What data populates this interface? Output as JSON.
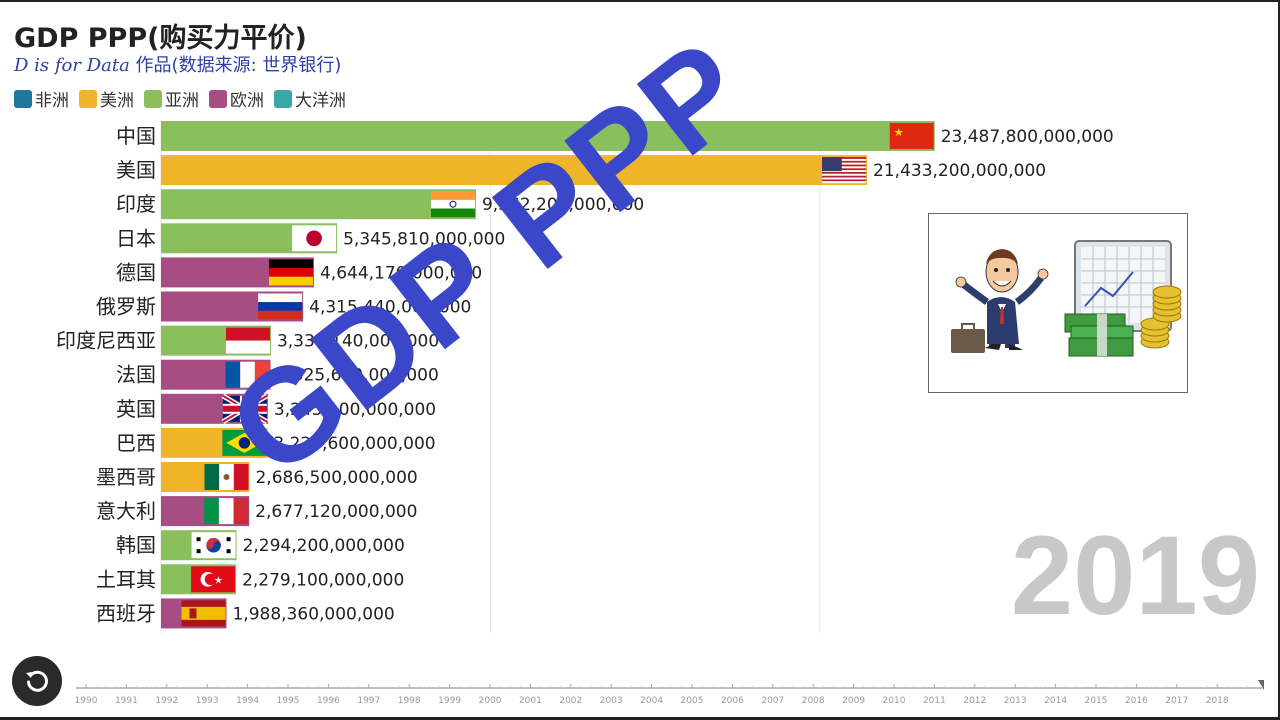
{
  "title": "GDP PPP(购买力平价)",
  "subtitle": {
    "brand": "D is for Data",
    "rest": " 作品(数据来源: 世界银行)"
  },
  "legend": [
    {
      "label": "非洲",
      "color": "#1f77a0"
    },
    {
      "label": "美洲",
      "color": "#f0b429"
    },
    {
      "label": "亚洲",
      "color": "#8bbf5e"
    },
    {
      "label": "欧洲",
      "color": "#a64d84"
    },
    {
      "label": "大洋洲",
      "color": "#3aa6a6"
    }
  ],
  "watermark": "GDP PPP",
  "year": "2019",
  "timeline": {
    "years": [
      "1990",
      "1991",
      "1992",
      "1993",
      "1994",
      "1995",
      "1996",
      "1997",
      "1998",
      "1999",
      "2000",
      "2001",
      "2002",
      "2003",
      "2004",
      "2005",
      "2006",
      "2007",
      "2008",
      "2009",
      "2010",
      "2011",
      "2012",
      "2013",
      "2014",
      "2015",
      "2016",
      "2017",
      "2018"
    ]
  },
  "chart_data": {
    "type": "bar",
    "title": "GDP PPP(购买力平价)",
    "categories": [
      "中国",
      "美国",
      "印度",
      "日本",
      "德国",
      "俄罗斯",
      "印度尼西亚",
      "法国",
      "英国",
      "巴西",
      "墨西哥",
      "意大利",
      "韩国",
      "土耳其",
      "西班牙"
    ],
    "values": [
      23487800000000,
      21433200000000,
      9562200000000,
      5345810000000,
      4644170000000,
      4315440000000,
      3338140000000,
      3325600000000,
      3245100000000,
      3229600000000,
      2686500000000,
      2677120000000,
      2294200000000,
      2279100000000,
      1988360000000
    ],
    "value_labels": [
      "23,487,800,000,000",
      "21,433,200,000,000",
      "9,562,200,000,000",
      "5,345,810,000,000",
      "4,644,170,000,000",
      "4,315,440,000,000",
      "3,338,140,000,000",
      "3,325,600,000,000",
      "3,245,100,000,000",
      "3,229,600,000,000",
      "2,686,500,000,000",
      "2,677,120,000,000",
      "2,294,200,000,000",
      "2,279,100,000,000",
      "1,988,360,000,000"
    ],
    "regions": [
      "亚洲",
      "美洲",
      "亚洲",
      "亚洲",
      "欧洲",
      "欧洲",
      "亚洲",
      "欧洲",
      "欧洲",
      "美洲",
      "美洲",
      "欧洲",
      "亚洲",
      "亚洲",
      "欧洲"
    ],
    "flags": [
      "china-flag",
      "usa-flag",
      "india-flag",
      "japan-flag",
      "germany-flag",
      "russia-flag",
      "indonesia-flag",
      "france-flag",
      "uk-flag",
      "brazil-flag",
      "mexico-flag",
      "italy-flag",
      "south-korea-flag",
      "turkey-flag",
      "spain-flag"
    ],
    "xlim": [
      0,
      25500000000000
    ],
    "grid": true,
    "legend_position": "top-left",
    "year": "2019"
  }
}
